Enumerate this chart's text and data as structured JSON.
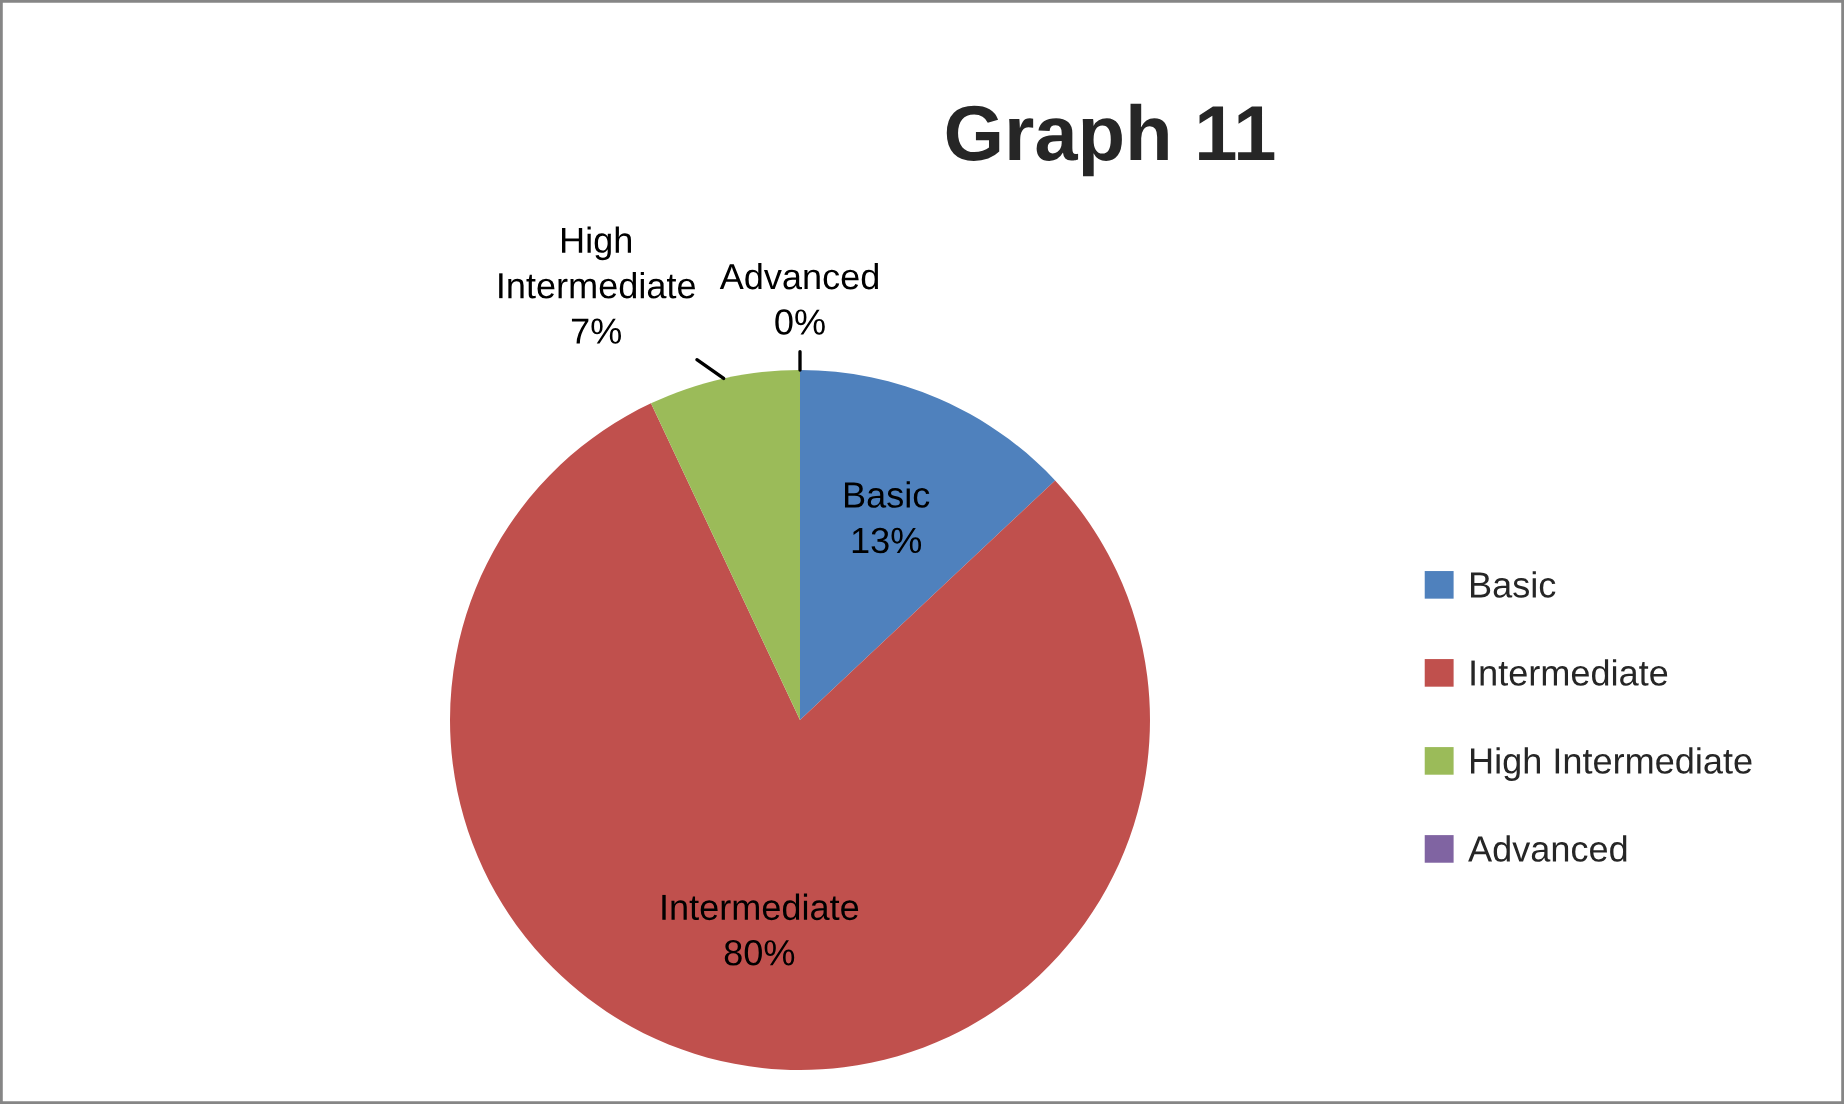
{
  "chart_data": {
    "type": "pie",
    "title": "Graph 11",
    "categories": [
      "Basic",
      "Intermediate",
      "High Intermediate",
      "Advanced"
    ],
    "values": [
      13,
      80,
      7,
      0
    ],
    "colors": [
      "#4f81bd",
      "#c0504d",
      "#9bbb59",
      "#8064a2"
    ],
    "value_labels": [
      "13%",
      "80%",
      "7%",
      "0%"
    ],
    "legend": "right"
  }
}
